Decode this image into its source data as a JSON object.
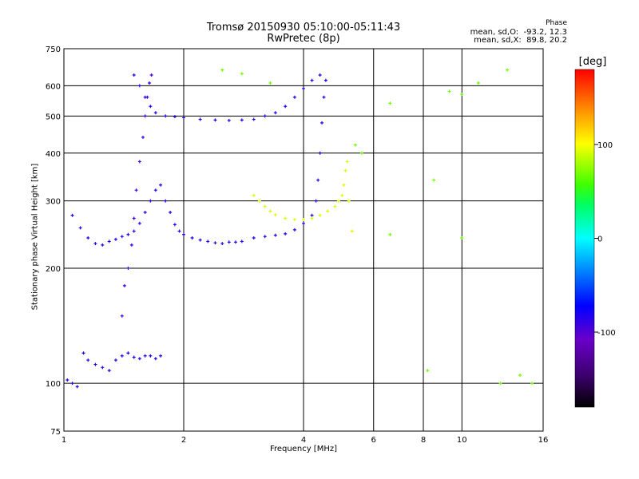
{
  "header": {
    "title_line1": "Tromsø 20150930 05:10:00-05:11:43",
    "title_line2": "RwPretec (8p)"
  },
  "phase_stats": {
    "heading": "Phase",
    "line_o": "mean, sd,O:  -93.2, 12.3",
    "line_x": "mean, sd,X:  89.8, 20.2"
  },
  "colors": {
    "background": "#ffffff",
    "grid": "#000000",
    "colormap": [
      "#000000",
      "#3a006a",
      "#6a00c8",
      "#0000ff",
      "#0080ff",
      "#00ffff",
      "#00ff60",
      "#40ff00",
      "#c0ff00",
      "#ffff00",
      "#ff9000",
      "#ff0000"
    ]
  },
  "chart_data": {
    "type": "scatter",
    "title": "Tromsø 20150930 05:10:00-05:11:43",
    "subtitle": "RwPretec (8p)",
    "xlabel": "Frequency [MHz]",
    "ylabel": "Stationary phase Virtual Height [km]",
    "xscale": "log",
    "yscale": "log",
    "xlim": [
      1,
      16
    ],
    "ylim": [
      75,
      750
    ],
    "xticks": [
      1,
      2,
      4,
      6,
      8,
      10,
      16
    ],
    "yticks": [
      75,
      100,
      200,
      300,
      400,
      500,
      600,
      750
    ],
    "grid": true,
    "colorbar": {
      "label": "[deg]",
      "range": [
        -180,
        180
      ],
      "ticks": [
        100,
        0,
        -100
      ]
    },
    "series": [
      {
        "role": "O-mode low echoes (blue)",
        "phase": -95,
        "points": [
          [
            1.02,
            102
          ],
          [
            1.05,
            100
          ],
          [
            1.08,
            98
          ],
          [
            1.12,
            120
          ],
          [
            1.15,
            115
          ],
          [
            1.2,
            112
          ],
          [
            1.25,
            110
          ],
          [
            1.3,
            108
          ],
          [
            1.35,
            115
          ],
          [
            1.4,
            118
          ],
          [
            1.45,
            120
          ],
          [
            1.5,
            117
          ],
          [
            1.55,
            116
          ],
          [
            1.6,
            118
          ],
          [
            1.65,
            118
          ],
          [
            1.7,
            116
          ],
          [
            1.75,
            118
          ]
        ]
      },
      {
        "role": "O-mode E/F1 region trace (blue)",
        "phase": -95,
        "points": [
          [
            1.05,
            275
          ],
          [
            1.1,
            255
          ],
          [
            1.15,
            240
          ],
          [
            1.2,
            232
          ],
          [
            1.25,
            230
          ],
          [
            1.3,
            235
          ],
          [
            1.35,
            238
          ],
          [
            1.4,
            242
          ],
          [
            1.45,
            245
          ],
          [
            1.5,
            250
          ],
          [
            1.55,
            262
          ],
          [
            1.6,
            280
          ],
          [
            1.65,
            300
          ],
          [
            1.7,
            320
          ],
          [
            1.75,
            330
          ],
          [
            1.8,
            300
          ],
          [
            1.85,
            280
          ],
          [
            1.9,
            260
          ],
          [
            1.95,
            250
          ],
          [
            2.0,
            245
          ],
          [
            2.1,
            240
          ],
          [
            2.2,
            237
          ],
          [
            2.3,
            235
          ],
          [
            2.4,
            233
          ],
          [
            2.5,
            232
          ],
          [
            2.6,
            234
          ],
          [
            2.7,
            234
          ],
          [
            2.8,
            235
          ],
          [
            3.0,
            240
          ],
          [
            3.2,
            242
          ],
          [
            3.4,
            244
          ],
          [
            3.6,
            246
          ],
          [
            3.8,
            252
          ],
          [
            4.0,
            262
          ],
          [
            4.2,
            275
          ],
          [
            4.3,
            300
          ],
          [
            4.35,
            340
          ],
          [
            4.4,
            400
          ],
          [
            4.45,
            480
          ],
          [
            4.5,
            560
          ],
          [
            4.55,
            620
          ]
        ]
      },
      {
        "role": "O-mode F2 layer upper trace (blue)",
        "phase": -95,
        "points": [
          [
            1.5,
            640
          ],
          [
            1.55,
            600
          ],
          [
            1.6,
            560
          ],
          [
            1.65,
            530
          ],
          [
            1.7,
            510
          ],
          [
            1.8,
            500
          ],
          [
            1.9,
            498
          ],
          [
            2.0,
            495
          ],
          [
            2.2,
            490
          ],
          [
            2.4,
            488
          ],
          [
            2.6,
            487
          ],
          [
            2.8,
            488
          ],
          [
            3.0,
            490
          ],
          [
            3.2,
            500
          ],
          [
            3.4,
            510
          ],
          [
            3.6,
            530
          ],
          [
            3.8,
            560
          ],
          [
            4.0,
            590
          ],
          [
            4.2,
            620
          ],
          [
            4.4,
            640
          ]
        ]
      },
      {
        "role": "Spread column near 1.5 MHz (blue)",
        "phase": -100,
        "points": [
          [
            1.4,
            150
          ],
          [
            1.42,
            180
          ],
          [
            1.45,
            200
          ],
          [
            1.48,
            230
          ],
          [
            1.5,
            270
          ],
          [
            1.52,
            320
          ],
          [
            1.55,
            380
          ],
          [
            1.58,
            440
          ],
          [
            1.6,
            500
          ],
          [
            1.62,
            560
          ],
          [
            1.64,
            610
          ],
          [
            1.66,
            640
          ]
        ]
      },
      {
        "role": "X-mode F2 trace (yellow)",
        "phase": 95,
        "points": [
          [
            3.0,
            310
          ],
          [
            3.1,
            300
          ],
          [
            3.2,
            290
          ],
          [
            3.3,
            282
          ],
          [
            3.4,
            276
          ],
          [
            3.6,
            270
          ],
          [
            3.8,
            268
          ],
          [
            4.0,
            268
          ],
          [
            4.2,
            270
          ],
          [
            4.4,
            275
          ],
          [
            4.6,
            282
          ],
          [
            4.8,
            290
          ],
          [
            4.9,
            300
          ],
          [
            5.0,
            310
          ],
          [
            5.05,
            330
          ],
          [
            5.1,
            360
          ],
          [
            5.15,
            380
          ],
          [
            5.2,
            300
          ],
          [
            5.3,
            250
          ]
        ]
      },
      {
        "role": "Sporadic echoes",
        "phase": 60,
        "points": [
          [
            2.5,
            660
          ],
          [
            2.8,
            645
          ],
          [
            3.3,
            610
          ],
          [
            5.4,
            420
          ],
          [
            5.6,
            400
          ],
          [
            6.6,
            540
          ],
          [
            6.6,
            245
          ],
          [
            8.2,
            108
          ],
          [
            8.5,
            340
          ],
          [
            9.3,
            580
          ],
          [
            10.0,
            240
          ],
          [
            10.0,
            570
          ],
          [
            11.0,
            610
          ],
          [
            12.5,
            100
          ],
          [
            13.0,
            660
          ],
          [
            14.0,
            105
          ],
          [
            15.0,
            100
          ]
        ]
      }
    ]
  }
}
